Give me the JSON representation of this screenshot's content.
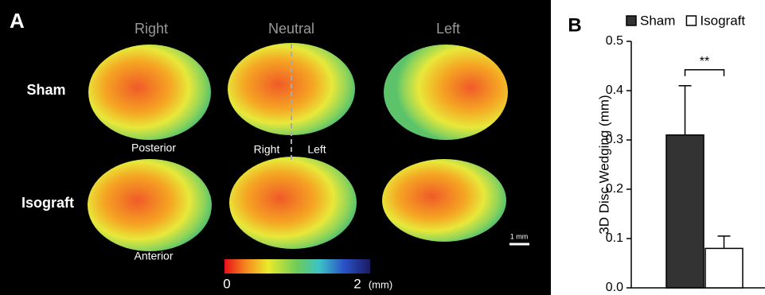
{
  "panel_a": {
    "label": "A",
    "columns": [
      "Right",
      "Neutral",
      "Left"
    ],
    "rows": [
      "Sham",
      "Isograft"
    ],
    "annotations": {
      "posterior": "Posterior",
      "anterior": "Anterior",
      "right": "Right",
      "left": "Left"
    },
    "scale_bar": "1 mm",
    "colorbar": {
      "min": "0",
      "max": "2",
      "unit": "(mm)"
    }
  },
  "chart_data": {
    "type": "bar",
    "panel_label": "B",
    "y_label": "3D Disc Wedging (mm)",
    "categories": [
      null
    ],
    "series": [
      {
        "name": "Sham",
        "color": "#333333",
        "values": [
          0.31
        ],
        "errors": [
          0.1
        ]
      },
      {
        "name": "Isograft",
        "color": "#ffffff",
        "values": [
          0.08
        ],
        "errors": [
          0.025
        ]
      }
    ],
    "ylim": [
      0,
      0.5
    ],
    "yticks": [
      {
        "value": 0,
        "label": "0.0"
      },
      0.1,
      0.2,
      0.3,
      0.4,
      0.5
    ],
    "significance": "**",
    "legend": "top"
  }
}
